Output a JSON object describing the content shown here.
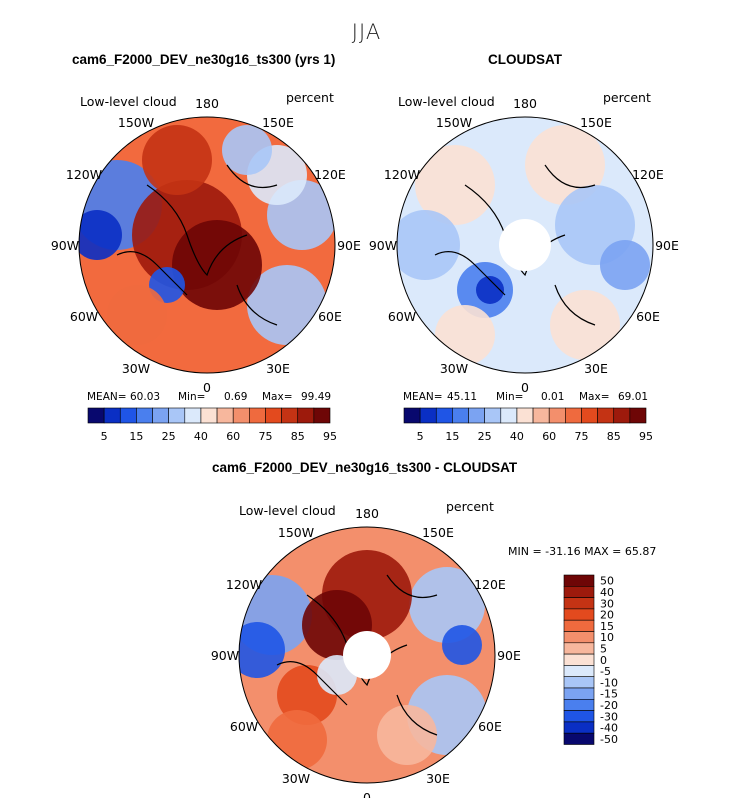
{
  "main_title": "JJA",
  "panels": [
    {
      "title": "cam6_F2000_DEV_ne30g16_ts300 (yrs 1)",
      "variable": "Low-level cloud",
      "units": "percent",
      "lon_labels": [
        "180",
        "150W",
        "150E",
        "120W",
        "120E",
        "90W",
        "90E",
        "60W",
        "60E",
        "30W",
        "30E",
        "0"
      ],
      "stats": {
        "mean_label": "MEAN=",
        "mean": "60.03",
        "min_label": "Min=",
        "min": "0.69",
        "max_label": "Max=",
        "max": "99.49"
      },
      "colorbar_labels": [
        "5",
        "15",
        "25",
        "40",
        "60",
        "75",
        "85",
        "95"
      ]
    },
    {
      "title": "CLOUDSAT",
      "variable": "Low-level cloud",
      "units": "percent",
      "lon_labels": [
        "180",
        "150W",
        "150E",
        "120W",
        "120E",
        "90W",
        "90E",
        "60W",
        "60E",
        "30W",
        "30E",
        "0"
      ],
      "stats": {
        "mean_label": "MEAN=",
        "mean": "45.11",
        "min_label": "Min=",
        "min": "0.01",
        "max_label": "Max=",
        "max": "69.01"
      },
      "colorbar_labels": [
        "5",
        "15",
        "25",
        "40",
        "60",
        "75",
        "85",
        "95"
      ]
    },
    {
      "title": "cam6_F2000_DEV_ne30g16_ts300 - CLOUDSAT",
      "variable": "Low-level cloud",
      "units": "percent",
      "lon_labels": [
        "180",
        "150W",
        "150E",
        "120W",
        "120E",
        "90W",
        "90E",
        "60W",
        "60E",
        "30W",
        "30E",
        "0"
      ],
      "stats_text": "MIN = -31.16 MAX =  65.87",
      "colorbar_labels": [
        "50",
        "40",
        "30",
        "20",
        "15",
        "10",
        "5",
        "0",
        "-5",
        "-10",
        "-15",
        "-20",
        "-30",
        "-40",
        "-50"
      ]
    }
  ],
  "colors": {
    "abs_scale": [
      "#08086e",
      "#0a2fc4",
      "#1f55e6",
      "#4a7fee",
      "#7ba3f2",
      "#a9c6f7",
      "#dbe9fb",
      "#fbe1d4",
      "#f7b79d",
      "#f38f6c",
      "#ef6a3e",
      "#e34a1e",
      "#c43314",
      "#9d1a0c",
      "#6e0606"
    ],
    "diff_scale": [
      "#6e0606",
      "#9d1a0c",
      "#c43314",
      "#e34a1e",
      "#ef6a3e",
      "#f38f6c",
      "#f7b79d",
      "#fbe1d4",
      "#dbe9fb",
      "#a9c6f7",
      "#7ba3f2",
      "#4a7fee",
      "#1f55e6",
      "#0a2fc4",
      "#08086e"
    ]
  }
}
